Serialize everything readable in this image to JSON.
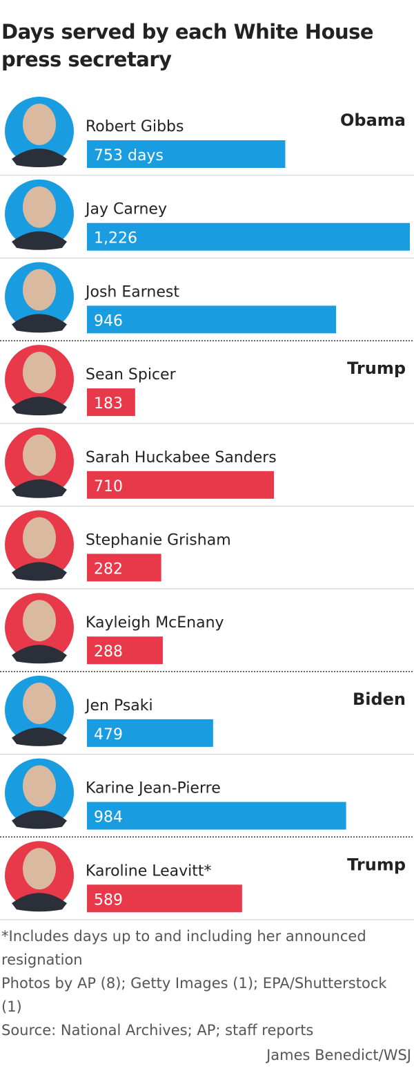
{
  "chart_data": {
    "type": "bar",
    "title": "Days served by each White House press secretary",
    "series": [
      {
        "name": "Obama",
        "color": "#1a9de0",
        "categories": [
          "Robert Gibbs",
          "Jay Carney",
          "Josh Earnest"
        ],
        "values": [
          753,
          1226,
          946
        ],
        "value_labels": [
          "753 days",
          "1,226",
          "946"
        ]
      },
      {
        "name": "Trump",
        "color": "#e8394a",
        "categories": [
          "Sean Spicer",
          "Sarah Huckabee Sanders",
          "Stephanie Grisham",
          "Kayleigh McEnany"
        ],
        "values": [
          183,
          710,
          282,
          288
        ],
        "value_labels": [
          "183",
          "710",
          "282",
          "288"
        ]
      },
      {
        "name": "Biden",
        "color": "#1a9de0",
        "categories": [
          "Jen Psaki",
          "Karine Jean-Pierre"
        ],
        "values": [
          479,
          984
        ],
        "value_labels": [
          "479",
          "984"
        ]
      },
      {
        "name": "Trump",
        "color": "#e8394a",
        "categories": [
          "Karoline Leavitt*"
        ],
        "values": [
          589
        ],
        "value_labels": [
          "589"
        ]
      }
    ],
    "notes": [
      "*Includes days up to and including her announced resignation",
      "Photos by AP (8); Getty Images (1); EPA/Shutterstock (1)",
      "Source: National Archives; AP; staff reports"
    ],
    "credit": "James Benedict/WSJ"
  }
}
